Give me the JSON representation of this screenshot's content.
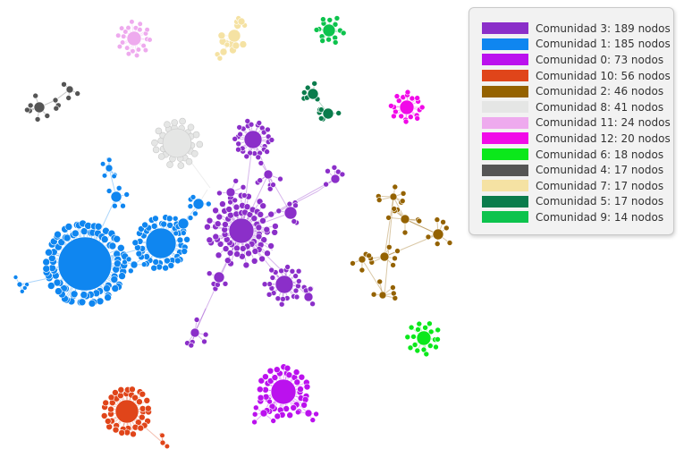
{
  "legend": {
    "items": [
      {
        "label": "Comunidad 3: 189 nodos",
        "color": "#8b2fc9"
      },
      {
        "label": "Comunidad 1: 185 nodos",
        "color": "#0f86f0"
      },
      {
        "label": "Comunidad 0: 73 nodos",
        "color": "#bb11ee"
      },
      {
        "label": "Comunidad 10: 56 nodos",
        "color": "#e0451a"
      },
      {
        "label": "Comunidad 2: 46 nodos",
        "color": "#946200"
      },
      {
        "label": "Comunidad 8: 41 nodos",
        "color": "#e5e6e5"
      },
      {
        "label": "Comunidad 11: 24 nodos",
        "color": "#eeaaee"
      },
      {
        "label": "Comunidad 12: 20 nodos",
        "color": "#f109e8"
      },
      {
        "label": "Comunidad 6: 18 nodos",
        "color": "#0be81b"
      },
      {
        "label": "Comunidad 4: 17 nodos",
        "color": "#555555"
      },
      {
        "label": "Comunidad 7: 17 nodos",
        "color": "#f5e2a3"
      },
      {
        "label": "Comunidad 5: 17 nodos",
        "color": "#0a7c4c"
      },
      {
        "label": "Comunidad 9: 14 nodos",
        "color": "#0dc34d"
      }
    ]
  }
}
